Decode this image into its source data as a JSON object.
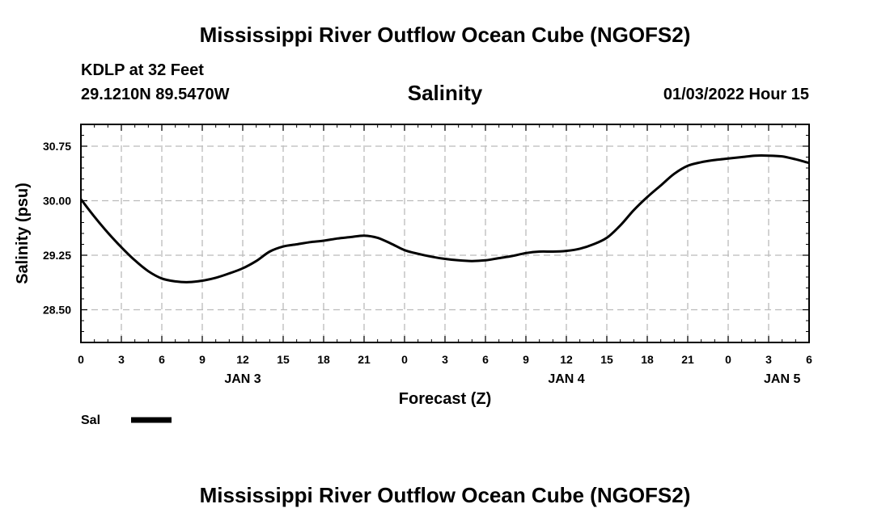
{
  "page_title": "Mississippi River Outflow Ocean Cube (NGOFS2)",
  "footer_title": "Mississippi River Outflow Ocean Cube (NGOFS2)",
  "station": {
    "name_depth": "KDLP at 32 Feet",
    "coordinates": "29.1210N  89.5470W"
  },
  "run_time": "01/03/2022 Hour 15",
  "chart_data": {
    "type": "line",
    "title": "Salinity",
    "xlabel": "Forecast (Z)",
    "ylabel": "Salinity (psu)",
    "xlim": [
      0,
      54
    ],
    "ylim": [
      28.05,
      31.05
    ],
    "x_tick_values": [
      0,
      3,
      6,
      9,
      12,
      15,
      18,
      21,
      24,
      27,
      30,
      33,
      36,
      39,
      42,
      45,
      48,
      51,
      54
    ],
    "x_tick_labels": [
      "0",
      "3",
      "6",
      "9",
      "12",
      "15",
      "18",
      "21",
      "0",
      "3",
      "6",
      "9",
      "12",
      "15",
      "18",
      "21",
      "0",
      "3",
      "6"
    ],
    "y_tick_values": [
      28.5,
      29.25,
      30.0,
      30.75
    ],
    "y_tick_labels": [
      "28.50",
      "29.25",
      "30.00",
      "30.75"
    ],
    "day_labels": [
      {
        "x": 12,
        "label": "JAN 3"
      },
      {
        "x": 36,
        "label": "JAN 4"
      },
      {
        "x": 52,
        "label": "JAN 5"
      }
    ],
    "grid": true,
    "series": [
      {
        "name": "Sal",
        "x": [
          0,
          1,
          2,
          3,
          4,
          5,
          6,
          7,
          8,
          9,
          10,
          11,
          12,
          13,
          14,
          15,
          16,
          17,
          18,
          19,
          20,
          21,
          22,
          23,
          24,
          25,
          26,
          27,
          28,
          29,
          30,
          31,
          32,
          33,
          34,
          35,
          36,
          37,
          38,
          39,
          40,
          41,
          42,
          43,
          44,
          45,
          46,
          47,
          48,
          49,
          50,
          51,
          52,
          53,
          54
        ],
        "values": [
          30.02,
          29.78,
          29.56,
          29.36,
          29.18,
          29.03,
          28.93,
          28.89,
          28.88,
          28.9,
          28.94,
          29.0,
          29.07,
          29.17,
          29.3,
          29.37,
          29.4,
          29.43,
          29.45,
          29.48,
          29.5,
          29.52,
          29.49,
          29.41,
          29.32,
          29.27,
          29.23,
          29.2,
          29.18,
          29.17,
          29.18,
          29.21,
          29.24,
          29.28,
          29.3,
          29.3,
          29.31,
          29.34,
          29.4,
          29.49,
          29.66,
          29.87,
          30.05,
          30.21,
          30.37,
          30.48,
          30.53,
          30.56,
          30.58,
          30.6,
          30.62,
          30.62,
          30.61,
          30.57,
          30.52
        ]
      }
    ]
  }
}
